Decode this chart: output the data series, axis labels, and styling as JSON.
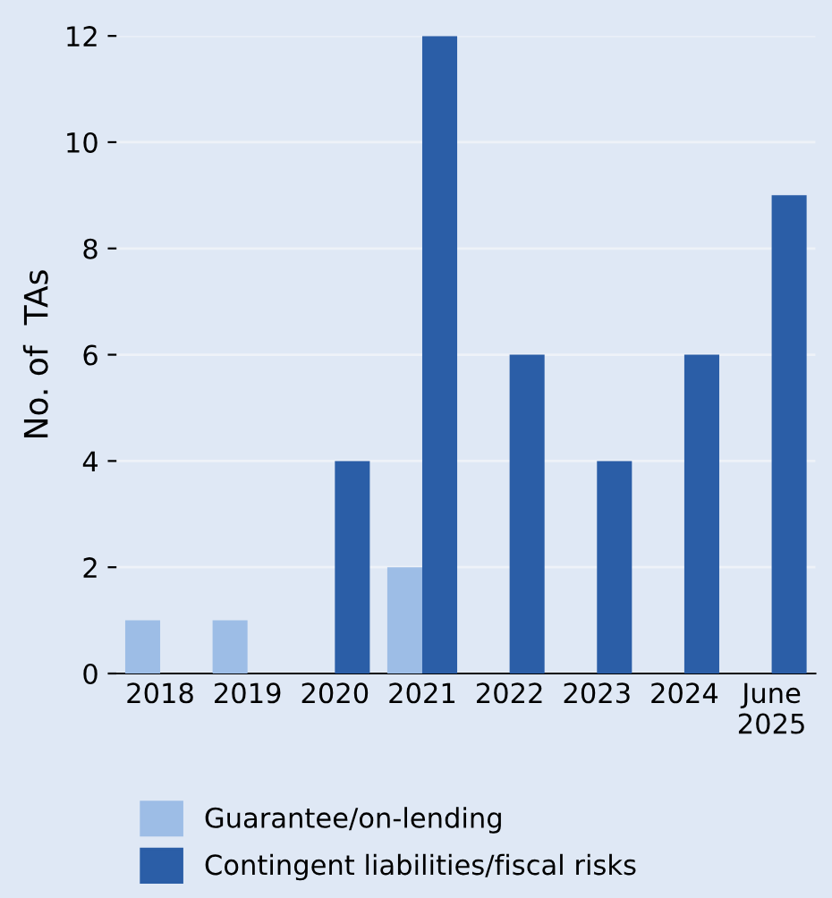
{
  "chart_data": {
    "type": "bar",
    "ylabel": "No. of  TAs",
    "categories": [
      "2018",
      "2019",
      "2020",
      "2021",
      "2022",
      "2023",
      "2024",
      "June\n2025"
    ],
    "series": [
      {
        "name": "Guarantee/on-lending",
        "color": "#9dbde6",
        "values": [
          1,
          1,
          null,
          2,
          null,
          null,
          null,
          null
        ]
      },
      {
        "name": "Contingent liabilities/fiscal risks",
        "color": "#2b5ea7",
        "values": [
          null,
          null,
          4,
          12,
          6,
          4,
          6,
          9
        ]
      }
    ],
    "ylim": [
      0,
      12
    ],
    "yticks": [
      0,
      2,
      4,
      6,
      8,
      10,
      12
    ],
    "grid": "y",
    "legend": "bottom"
  }
}
